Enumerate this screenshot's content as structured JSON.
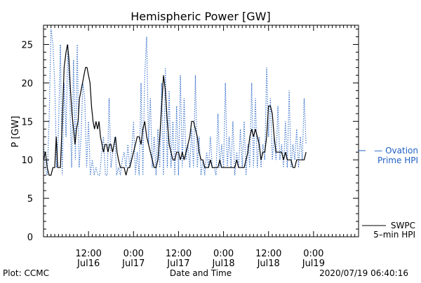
{
  "chart_data": {
    "type": "line",
    "title": "Hemispheric Power [GW]",
    "xlabel": "Date and Time",
    "ylabel": "P [GW]",
    "ylim": [
      0,
      27.5
    ],
    "xlim": [
      0,
      84
    ],
    "grid": false,
    "y_ticks": [
      0,
      5,
      10,
      15,
      20,
      25
    ],
    "x_ticks": [
      {
        "hours": 12,
        "time": "12:00",
        "date": "Jul16"
      },
      {
        "hours": 24,
        "time": "0:00",
        "date": "Jul17"
      },
      {
        "hours": 36,
        "time": "12:00",
        "date": "Jul17"
      },
      {
        "hours": 48,
        "time": "0:00",
        "date": "Jul18"
      },
      {
        "hours": 60,
        "time": "12:00",
        "date": "Jul18"
      },
      {
        "hours": 72,
        "time": "0:00",
        "date": "Jul19"
      }
    ],
    "series": [
      {
        "name": "SWPC 5-min HPI",
        "color": "#000000",
        "style": "solid",
        "points": [
          [
            0,
            10
          ],
          [
            0.5,
            11
          ],
          [
            1,
            9
          ],
          [
            1.5,
            8
          ],
          [
            2,
            8
          ],
          [
            2.5,
            9
          ],
          [
            3,
            9
          ],
          [
            3.4,
            13
          ],
          [
            3.8,
            9
          ],
          [
            4.5,
            9
          ],
          [
            5,
            15
          ],
          [
            5.5,
            22
          ],
          [
            6,
            24
          ],
          [
            6.4,
            25
          ],
          [
            6.8,
            23
          ],
          [
            7.2,
            19
          ],
          [
            7.6,
            16
          ],
          [
            8,
            14
          ],
          [
            8.4,
            12
          ],
          [
            8.8,
            14
          ],
          [
            9.2,
            15
          ],
          [
            9.6,
            18
          ],
          [
            10,
            19
          ],
          [
            10.4,
            20
          ],
          [
            10.8,
            21
          ],
          [
            11.2,
            22
          ],
          [
            11.6,
            22
          ],
          [
            12,
            21
          ],
          [
            12.4,
            20
          ],
          [
            12.8,
            17
          ],
          [
            13.2,
            15
          ],
          [
            13.6,
            14
          ],
          [
            14,
            15
          ],
          [
            14.4,
            14
          ],
          [
            14.8,
            15
          ],
          [
            15.2,
            13
          ],
          [
            15.6,
            12
          ],
          [
            16,
            11
          ],
          [
            16.4,
            12
          ],
          [
            16.8,
            12
          ],
          [
            17.2,
            11
          ],
          [
            17.6,
            12
          ],
          [
            18,
            12
          ],
          [
            18.4,
            11
          ],
          [
            18.8,
            12
          ],
          [
            19.2,
            13
          ],
          [
            19.6,
            11
          ],
          [
            20,
            10
          ],
          [
            20.5,
            9
          ],
          [
            21,
            9
          ],
          [
            21.5,
            9
          ],
          [
            22,
            8
          ],
          [
            22.5,
            9
          ],
          [
            23,
            9
          ],
          [
            23.5,
            10
          ],
          [
            24,
            11
          ],
          [
            24.5,
            12
          ],
          [
            25,
            13
          ],
          [
            25.5,
            13
          ],
          [
            26,
            12
          ],
          [
            26.5,
            14
          ],
          [
            27,
            15
          ],
          [
            27.5,
            13
          ],
          [
            28,
            12
          ],
          [
            28.5,
            11
          ],
          [
            29,
            10
          ],
          [
            29.5,
            9
          ],
          [
            30,
            9
          ],
          [
            30.5,
            10
          ],
          [
            31,
            13
          ],
          [
            31.5,
            17
          ],
          [
            32,
            21
          ],
          [
            32.5,
            19
          ],
          [
            33,
            15
          ],
          [
            33.5,
            12
          ],
          [
            34,
            11
          ],
          [
            34.5,
            10
          ],
          [
            35,
            10
          ],
          [
            35.5,
            11
          ],
          [
            36,
            11
          ],
          [
            36.5,
            10
          ],
          [
            37,
            11
          ],
          [
            37.5,
            10
          ],
          [
            38,
            11
          ],
          [
            38.5,
            12
          ],
          [
            39,
            13
          ],
          [
            39.5,
            15
          ],
          [
            40,
            15
          ],
          [
            40.5,
            14
          ],
          [
            41,
            13
          ],
          [
            41.5,
            11
          ],
          [
            42,
            10
          ],
          [
            42.5,
            10
          ],
          [
            43,
            9
          ],
          [
            43.5,
            9
          ],
          [
            44,
            9
          ],
          [
            44.5,
            10
          ],
          [
            45,
            9
          ],
          [
            45.5,
            9
          ],
          [
            46,
            9
          ],
          [
            46.5,
            9
          ],
          [
            47,
            10
          ],
          [
            47.5,
            9
          ],
          [
            48,
            9
          ],
          [
            48.5,
            9
          ],
          [
            49,
            9
          ],
          [
            49.5,
            9
          ],
          [
            50,
            9
          ],
          [
            50.5,
            9
          ],
          [
            51,
            9
          ],
          [
            51.5,
            10
          ],
          [
            52,
            9
          ],
          [
            52.5,
            9
          ],
          [
            53,
            9
          ],
          [
            53.5,
            9
          ],
          [
            54,
            10
          ],
          [
            54.5,
            11
          ],
          [
            55,
            13
          ],
          [
            55.5,
            14
          ],
          [
            56,
            13
          ],
          [
            56.5,
            14
          ],
          [
            57,
            13
          ],
          [
            57.5,
            12
          ],
          [
            58,
            10
          ],
          [
            58.5,
            11
          ],
          [
            59,
            11
          ],
          [
            59.5,
            13
          ],
          [
            60,
            17
          ],
          [
            60.5,
            17
          ],
          [
            61,
            16
          ],
          [
            61.5,
            13
          ],
          [
            62,
            11
          ],
          [
            62.5,
            11
          ],
          [
            63,
            11
          ],
          [
            63.5,
            11
          ],
          [
            64,
            10
          ],
          [
            64.5,
            11
          ],
          [
            65,
            10
          ],
          [
            65.5,
            10
          ],
          [
            66,
            10
          ],
          [
            66.5,
            9
          ],
          [
            67,
            9
          ],
          [
            67.5,
            10
          ],
          [
            68,
            10
          ],
          [
            68.5,
            10
          ],
          [
            69,
            10
          ],
          [
            69.5,
            10
          ],
          [
            70,
            11
          ]
        ]
      },
      {
        "name": "Ovation Prime HPI",
        "color": "#1f5fc4",
        "style": "dotted",
        "points": [
          [
            0,
            12
          ],
          [
            0.5,
            9
          ],
          [
            1,
            8
          ],
          [
            1.5,
            15
          ],
          [
            2,
            27
          ],
          [
            2.5,
            25
          ],
          [
            3,
            20
          ],
          [
            3.5,
            9
          ],
          [
            4,
            14
          ],
          [
            4.5,
            25
          ],
          [
            5,
            8
          ],
          [
            5.5,
            20
          ],
          [
            6,
            13
          ],
          [
            6.5,
            25
          ],
          [
            7,
            18
          ],
          [
            7.5,
            9
          ],
          [
            8,
            23
          ],
          [
            8.5,
            10
          ],
          [
            9,
            25
          ],
          [
            9.5,
            9
          ],
          [
            10,
            13
          ],
          [
            10.5,
            20
          ],
          [
            11,
            18
          ],
          [
            11.5,
            9
          ],
          [
            12,
            15
          ],
          [
            12.5,
            8
          ],
          [
            13,
            10
          ],
          [
            13.5,
            8
          ],
          [
            14,
            9
          ],
          [
            14.5,
            8
          ],
          [
            15,
            8
          ],
          [
            15.5,
            11
          ],
          [
            16,
            13
          ],
          [
            16.5,
            8
          ],
          [
            17,
            8
          ],
          [
            17.5,
            18
          ],
          [
            18,
            9
          ],
          [
            18.5,
            11
          ],
          [
            19,
            13
          ],
          [
            19.5,
            8
          ],
          [
            20,
            9
          ],
          [
            20.5,
            8
          ],
          [
            21,
            10
          ],
          [
            21.5,
            11
          ],
          [
            22,
            9
          ],
          [
            22.5,
            12
          ],
          [
            23,
            9
          ],
          [
            23.5,
            11
          ],
          [
            24,
            15
          ],
          [
            24.5,
            8
          ],
          [
            25,
            11
          ],
          [
            25.5,
            8
          ],
          [
            26,
            20
          ],
          [
            26.5,
            8
          ],
          [
            27,
            21
          ],
          [
            27.5,
            26
          ],
          [
            28,
            12
          ],
          [
            28.5,
            18
          ],
          [
            29,
            9
          ],
          [
            29.5,
            13
          ],
          [
            30,
            8
          ],
          [
            30.5,
            14
          ],
          [
            31,
            9
          ],
          [
            31.5,
            20
          ],
          [
            32,
            8
          ],
          [
            32.5,
            22
          ],
          [
            33,
            9
          ],
          [
            33.5,
            19
          ],
          [
            34,
            9
          ],
          [
            34.5,
            15
          ],
          [
            35,
            8
          ],
          [
            35.5,
            17
          ],
          [
            36,
            8
          ],
          [
            36.5,
            21
          ],
          [
            37,
            9
          ],
          [
            37.5,
            18
          ],
          [
            38,
            10
          ],
          [
            38.5,
            12
          ],
          [
            39,
            9
          ],
          [
            39.5,
            14
          ],
          [
            40,
            9
          ],
          [
            40.5,
            21
          ],
          [
            41,
            9
          ],
          [
            41.5,
            13
          ],
          [
            42,
            8
          ],
          [
            42.5,
            10
          ],
          [
            43,
            8
          ],
          [
            43.5,
            11
          ],
          [
            44,
            9
          ],
          [
            44.5,
            13
          ],
          [
            45,
            9
          ],
          [
            45.5,
            9
          ],
          [
            46,
            8
          ],
          [
            46.5,
            16
          ],
          [
            47,
            9
          ],
          [
            47.5,
            12
          ],
          [
            48,
            9
          ],
          [
            48.5,
            20
          ],
          [
            49,
            9
          ],
          [
            49.5,
            13
          ],
          [
            50,
            9
          ],
          [
            50.5,
            15
          ],
          [
            51,
            8
          ],
          [
            51.5,
            11
          ],
          [
            52,
            9
          ],
          [
            52.5,
            14
          ],
          [
            53,
            9
          ],
          [
            53.5,
            15
          ],
          [
            54,
            8
          ],
          [
            54.5,
            12
          ],
          [
            55,
            9
          ],
          [
            55.5,
            20
          ],
          [
            56,
            9
          ],
          [
            56.5,
            18
          ],
          [
            57,
            9
          ],
          [
            57.5,
            13
          ],
          [
            58,
            9
          ],
          [
            58.5,
            12
          ],
          [
            59,
            10
          ],
          [
            59.5,
            22
          ],
          [
            60,
            13
          ],
          [
            60.5,
            18
          ],
          [
            61,
            10
          ],
          [
            61.5,
            13
          ],
          [
            62,
            10
          ],
          [
            62.5,
            17
          ],
          [
            63,
            10
          ],
          [
            63.5,
            12
          ],
          [
            64,
            9
          ],
          [
            64.5,
            15
          ],
          [
            65,
            9
          ],
          [
            65.5,
            19
          ],
          [
            66,
            9
          ],
          [
            66.5,
            12
          ],
          [
            67,
            10
          ],
          [
            67.5,
            14
          ],
          [
            68,
            9
          ],
          [
            68.5,
            13
          ],
          [
            69,
            10
          ],
          [
            69.5,
            18
          ],
          [
            70,
            12
          ]
        ]
      }
    ]
  },
  "footer": {
    "left": "Plot: CCMC",
    "right": "2020/07/19 06:40:16"
  },
  "legend": {
    "ovation_line1": "— Ovation",
    "ovation_line2": "Prime HPI",
    "swpc_line1": "SWPC",
    "swpc_line2": "5–min HPI"
  }
}
